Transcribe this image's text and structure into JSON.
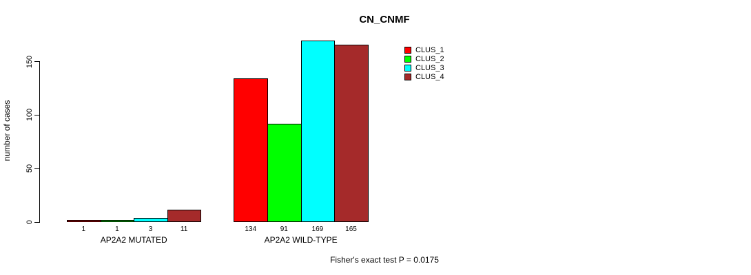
{
  "chart": {
    "background_color": "#FFFFFF",
    "text_color": "#000000"
  },
  "chart_data": {
    "type": "bar",
    "title": "CN_CNMF",
    "ylabel": "number of cases",
    "xlabel": "",
    "groups": [
      "AP2A2 MUTATED",
      "AP2A2 WILD-TYPE"
    ],
    "series": [
      {
        "name": "CLUS_1",
        "color": "#FF0000",
        "values": [
          1,
          134
        ]
      },
      {
        "name": "CLUS_2",
        "color": "#00FF00",
        "values": [
          1,
          91
        ]
      },
      {
        "name": "CLUS_3",
        "color": "#00FFFF",
        "values": [
          3,
          169
        ]
      },
      {
        "name": "CLUS_4",
        "color": "#A52A2A",
        "values": [
          11,
          165
        ]
      }
    ],
    "yticks": [
      0,
      50,
      100,
      150
    ],
    "ylim": [
      0,
      175
    ],
    "grid": false,
    "bar_value_labels_shown": true,
    "legend_position": "inside top, right of center",
    "annotation": "Fisher's exact test P = 0.0175"
  }
}
